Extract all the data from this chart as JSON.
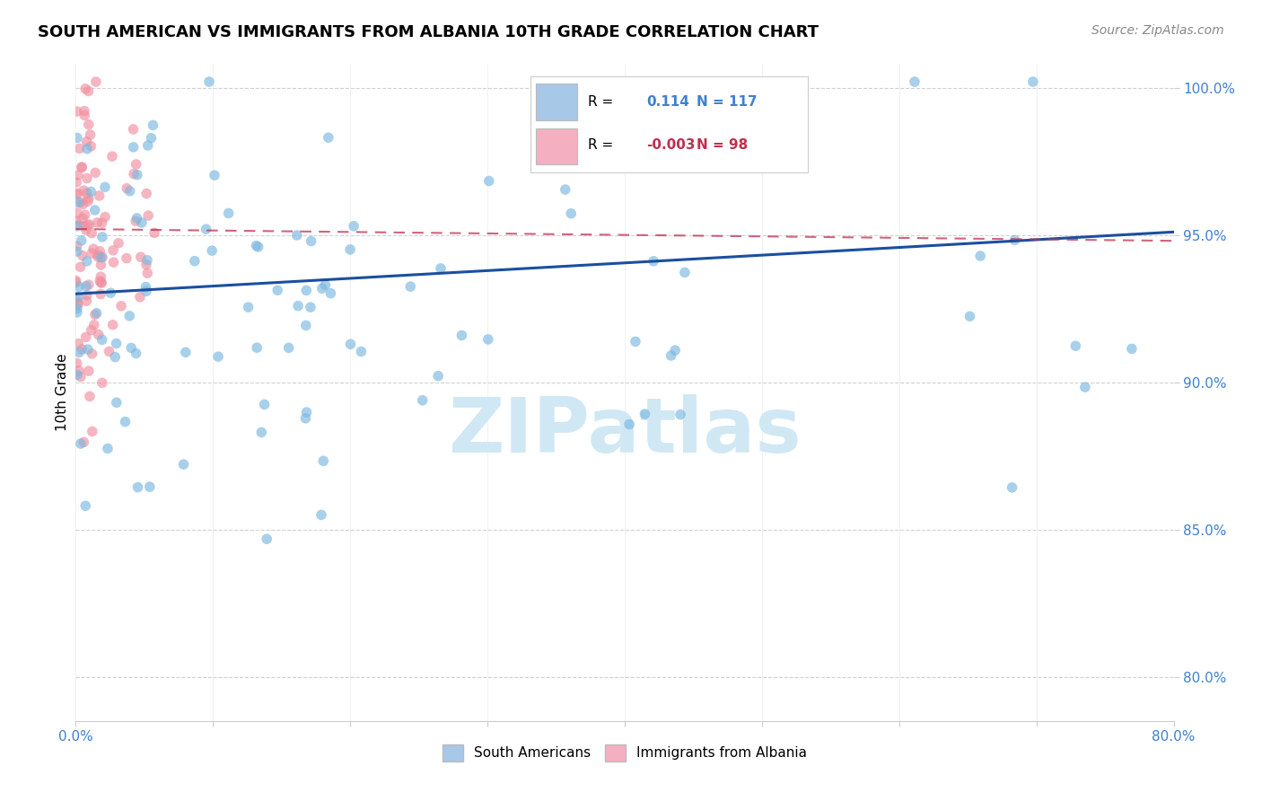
{
  "title": "SOUTH AMERICAN VS IMMIGRANTS FROM ALBANIA 10TH GRADE CORRELATION CHART",
  "source": "Source: ZipAtlas.com",
  "ylabel": "10th Grade",
  "r_blue": 0.114,
  "n_blue": 117,
  "r_pink": -0.003,
  "n_pink": 98,
  "xlim": [
    0.0,
    0.8
  ],
  "ylim": [
    0.785,
    1.008
  ],
  "ytick_labels": [
    "80.0%",
    "85.0%",
    "90.0%",
    "95.0%",
    "100.0%"
  ],
  "ytick_values": [
    0.8,
    0.85,
    0.9,
    0.95,
    1.0
  ],
  "xtick_values": [
    0.0,
    0.1,
    0.2,
    0.3,
    0.4,
    0.5,
    0.6,
    0.7,
    0.8
  ],
  "legend_labels": [
    "South Americans",
    "Immigrants from Albania"
  ],
  "legend_colors": [
    "#a8c8e8",
    "#f4b0c0"
  ],
  "blue_scatter_color": "#7ab8e0",
  "pink_scatter_color": "#f090a0",
  "trendline_blue_color": "#1a4fa0",
  "trendline_pink_color": "#c03050",
  "watermark_text": "ZIPatlas",
  "watermark_color": "#d0e8f4",
  "background_color": "#ffffff",
  "grid_color": "#cccccc",
  "tick_color": "#4080d0",
  "title_fontsize": 13,
  "source_fontsize": 10,
  "tick_fontsize": 11,
  "ylabel_fontsize": 11,
  "legend_fontsize": 11
}
